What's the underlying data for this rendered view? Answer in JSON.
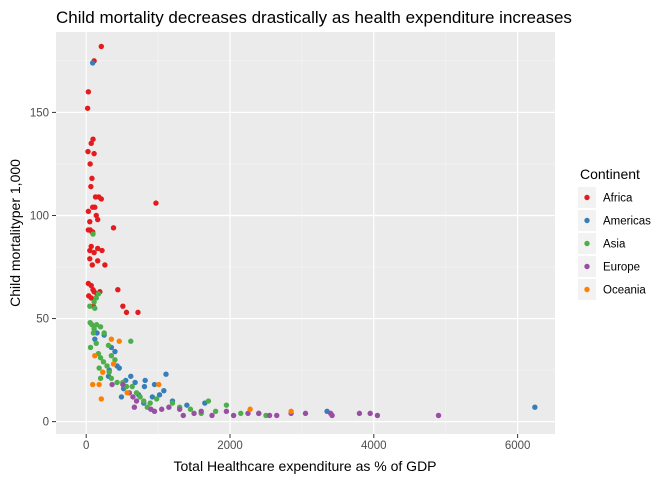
{
  "chart_data": {
    "type": "scatter",
    "title": "Child mortality decreases drastically as health expenditure increases",
    "xlabel": "Total Healthcare expenditure as % of GDP",
    "ylabel": "Child mortalityper 1,000",
    "xlim": [
      -420,
      6520
    ],
    "ylim": [
      -6,
      189
    ],
    "x_ticks": [
      0,
      2000,
      4000,
      6000
    ],
    "y_ticks": [
      0,
      50,
      100,
      150
    ],
    "y_tick_labels": [
      "0",
      "50",
      "100",
      "150"
    ],
    "grid": true,
    "legend": {
      "title": "Continent",
      "placement": "right"
    },
    "series": [
      {
        "name": "Africa",
        "color": "#e41a1c",
        "points": [
          [
            210,
            182
          ],
          [
            110,
            175
          ],
          [
            30,
            160
          ],
          [
            20,
            152
          ],
          [
            95,
            137
          ],
          [
            70,
            135
          ],
          [
            110,
            130
          ],
          [
            25,
            131
          ],
          [
            55,
            125
          ],
          [
            80,
            118
          ],
          [
            65,
            114
          ],
          [
            130,
            109
          ],
          [
            175,
            109
          ],
          [
            210,
            108
          ],
          [
            120,
            104
          ],
          [
            90,
            104
          ],
          [
            970,
            106
          ],
          [
            30,
            102
          ],
          [
            140,
            100
          ],
          [
            160,
            98
          ],
          [
            50,
            97
          ],
          [
            30,
            93
          ],
          [
            55,
            93
          ],
          [
            80,
            92
          ],
          [
            90,
            92
          ],
          [
            380,
            94
          ],
          [
            70,
            85
          ],
          [
            160,
            84
          ],
          [
            50,
            83
          ],
          [
            220,
            83
          ],
          [
            110,
            82
          ],
          [
            50,
            79
          ],
          [
            160,
            78
          ],
          [
            85,
            76
          ],
          [
            260,
            76
          ],
          [
            30,
            67
          ],
          [
            70,
            66
          ],
          [
            95,
            64
          ],
          [
            110,
            63
          ],
          [
            190,
            63
          ],
          [
            440,
            64
          ],
          [
            150,
            62
          ],
          [
            35,
            61
          ],
          [
            70,
            60
          ],
          [
            100,
            56
          ],
          [
            510,
            56
          ],
          [
            560,
            53
          ],
          [
            720,
            53
          ]
        ]
      },
      {
        "name": "Americas",
        "color": "#377eb8",
        "points": [
          [
            90,
            174
          ],
          [
            150,
            43
          ],
          [
            250,
            42
          ],
          [
            350,
            36
          ],
          [
            400,
            34
          ],
          [
            120,
            40
          ],
          [
            310,
            22
          ],
          [
            320,
            25
          ],
          [
            430,
            27
          ],
          [
            460,
            26
          ],
          [
            550,
            20
          ],
          [
            520,
            16
          ],
          [
            680,
            19
          ],
          [
            810,
            17
          ],
          [
            820,
            20
          ],
          [
            950,
            18
          ],
          [
            1080,
            15
          ],
          [
            1110,
            23
          ],
          [
            1020,
            13
          ],
          [
            920,
            12
          ],
          [
            730,
            13
          ],
          [
            490,
            12
          ],
          [
            620,
            22
          ],
          [
            800,
            9
          ],
          [
            1200,
            10
          ],
          [
            1400,
            8
          ],
          [
            1650,
            9
          ],
          [
            3350,
            5
          ],
          [
            6240,
            7
          ]
        ]
      },
      {
        "name": "Asia",
        "color": "#4daf4a",
        "points": [
          [
            50,
            56
          ],
          [
            120,
            55
          ],
          [
            95,
            91
          ],
          [
            170,
            62
          ],
          [
            140,
            60
          ],
          [
            110,
            58
          ],
          [
            55,
            48
          ],
          [
            80,
            47
          ],
          [
            110,
            45
          ],
          [
            145,
            47
          ],
          [
            200,
            46
          ],
          [
            250,
            43
          ],
          [
            310,
            37
          ],
          [
            620,
            39
          ],
          [
            100,
            43
          ],
          [
            140,
            38
          ],
          [
            60,
            36
          ],
          [
            170,
            33
          ],
          [
            200,
            31
          ],
          [
            240,
            29
          ],
          [
            350,
            32
          ],
          [
            400,
            30
          ],
          [
            290,
            27
          ],
          [
            320,
            24
          ],
          [
            200,
            21
          ],
          [
            180,
            26
          ],
          [
            350,
            21
          ],
          [
            430,
            19
          ],
          [
            510,
            19
          ],
          [
            560,
            17
          ],
          [
            640,
            17
          ],
          [
            700,
            14
          ],
          [
            750,
            12
          ],
          [
            800,
            10
          ],
          [
            890,
            9
          ],
          [
            980,
            11
          ],
          [
            1200,
            9
          ],
          [
            1300,
            7
          ],
          [
            1450,
            6
          ],
          [
            1700,
            10
          ],
          [
            1950,
            8
          ],
          [
            2150,
            4
          ],
          [
            2400,
            4
          ],
          [
            2500,
            3
          ],
          [
            1800,
            5
          ],
          [
            1600,
            4
          ],
          [
            850,
            7
          ]
        ]
      },
      {
        "name": "Europe",
        "color": "#984ea3",
        "points": [
          [
            360,
            18
          ],
          [
            510,
            18
          ],
          [
            600,
            14
          ],
          [
            650,
            12
          ],
          [
            700,
            10
          ],
          [
            670,
            7
          ],
          [
            900,
            6
          ],
          [
            950,
            5
          ],
          [
            1050,
            6
          ],
          [
            1150,
            7
          ],
          [
            1300,
            6
          ],
          [
            1500,
            4
          ],
          [
            1600,
            5
          ],
          [
            1750,
            3
          ],
          [
            1950,
            5
          ],
          [
            2050,
            3
          ],
          [
            2250,
            4
          ],
          [
            2400,
            4
          ],
          [
            2550,
            3
          ],
          [
            2850,
            4
          ],
          [
            3050,
            4
          ],
          [
            3400,
            4
          ],
          [
            3420,
            3
          ],
          [
            3800,
            4
          ],
          [
            3950,
            4
          ],
          [
            4050,
            3
          ],
          [
            4900,
            3
          ],
          [
            1350,
            3
          ],
          [
            2650,
            3
          ]
        ]
      },
      {
        "name": "Oceania",
        "color": "#ff7f00",
        "points": [
          [
            120,
            32
          ],
          [
            90,
            18
          ],
          [
            180,
            18
          ],
          [
            210,
            11
          ],
          [
            350,
            40
          ],
          [
            460,
            39
          ],
          [
            380,
            28
          ],
          [
            230,
            24
          ],
          [
            570,
            14
          ],
          [
            1010,
            18
          ],
          [
            2280,
            6
          ],
          [
            2850,
            5
          ]
        ]
      }
    ]
  }
}
